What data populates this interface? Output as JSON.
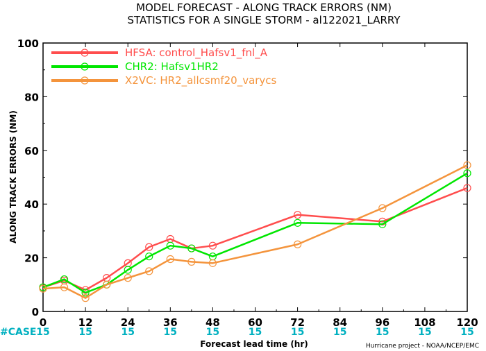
{
  "chart_data": {
    "type": "line",
    "title": "MODEL FORECAST - ALONG TRACK ERRORS (NM)",
    "subtitle": "STATISTICS FOR A SINGLE STORM - al122021_LARRY",
    "xlabel": "Forecast lead time (hr)",
    "ylabel": "ALONG TRACK ERRORS (NM)",
    "xlim": [
      0,
      120
    ],
    "ylim": [
      0,
      100
    ],
    "x_ticks": [
      "0",
      "12",
      "24",
      "36",
      "48",
      "60",
      "72",
      "84",
      "96",
      "108",
      "120"
    ],
    "y_ticks": [
      "0",
      "20",
      "40",
      "60",
      "80",
      "100"
    ],
    "legend_position": "top-left",
    "series": [
      {
        "name": "HFSA: control_Hafsv1_fnl_A",
        "color": "#ff4d4d",
        "x": [
          0,
          6,
          12,
          18,
          24,
          30,
          36,
          42,
          48,
          72,
          96,
          120
        ],
        "values": [
          9,
          11.5,
          8,
          12.5,
          18,
          24,
          27,
          23.5,
          24.5,
          36,
          33.5,
          46
        ]
      },
      {
        "name": "CHR2: Hafsv1HR2",
        "color": "#00e600",
        "x": [
          0,
          6,
          12,
          18,
          24,
          30,
          36,
          42,
          48,
          72,
          96,
          120
        ],
        "values": [
          9,
          12,
          7,
          10,
          15.5,
          20.5,
          24.5,
          23.5,
          20.5,
          33,
          32.5,
          51.5
        ]
      },
      {
        "name": "X2VC: HR2_allcsmf20_varycs",
        "color": "#f4943c",
        "x": [
          0,
          6,
          12,
          18,
          24,
          30,
          36,
          42,
          48,
          72,
          96,
          120
        ],
        "values": [
          8.5,
          9,
          5,
          10,
          12.5,
          15,
          19.5,
          18.5,
          18,
          25,
          38.5,
          54.5
        ]
      }
    ],
    "case_label": "#CASE",
    "case_counts": [
      "15",
      "15",
      "15",
      "15",
      "15",
      "15",
      "15",
      "15",
      "15",
      "15",
      "15"
    ],
    "case_color": "#00b0c0",
    "credit": "Hurricane project - NOAA/NCEP/EMC"
  }
}
